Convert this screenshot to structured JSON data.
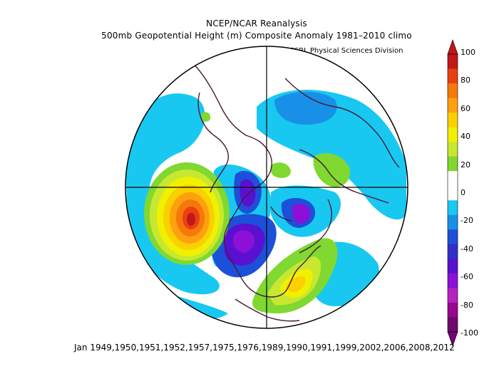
{
  "header": {
    "title": "NCEP/NCAR Reanalysis",
    "subtitle": "500mb Geopotential Height (m) Composite Anomaly 1981–2010 climo",
    "credit": "NOAA/ESRL Physical Sciences Division"
  },
  "footer": {
    "years": "Jan 1949,1950,1951,1952,1957,1975,1976,1989,1990,1991,1999,2002,2006,2008,2012"
  },
  "map": {
    "projection": "polar-stereographic-north",
    "land_outline_color": "#4a1a3a",
    "anomaly_features": [
      {
        "name": "north-pacific-ridge",
        "peak": 100
      },
      {
        "name": "central-north-america-trough",
        "peak": -70
      },
      {
        "name": "greenland-trough",
        "peak": -60
      },
      {
        "name": "southeast-us-ridge",
        "peak": 50
      },
      {
        "name": "arctic-negative-anomaly",
        "peak": -30
      }
    ]
  },
  "colorbar": {
    "levels": [
      "100",
      "80",
      "60",
      "40",
      "20",
      "0",
      "-20",
      "-40",
      "-60",
      "-80",
      "-100"
    ],
    "colors": [
      "#c01818",
      "#e84010",
      "#f5780a",
      "#ffa010",
      "#fad000",
      "#f0f000",
      "#c8e830",
      "#80d830",
      "#ffffff",
      "#ffffff",
      "#18c8f0",
      "#1890e8",
      "#1c50d8",
      "#3030c8",
      "#5a10d0",
      "#8c10d8",
      "#b820c0",
      "#980890",
      "#700870"
    ]
  }
}
